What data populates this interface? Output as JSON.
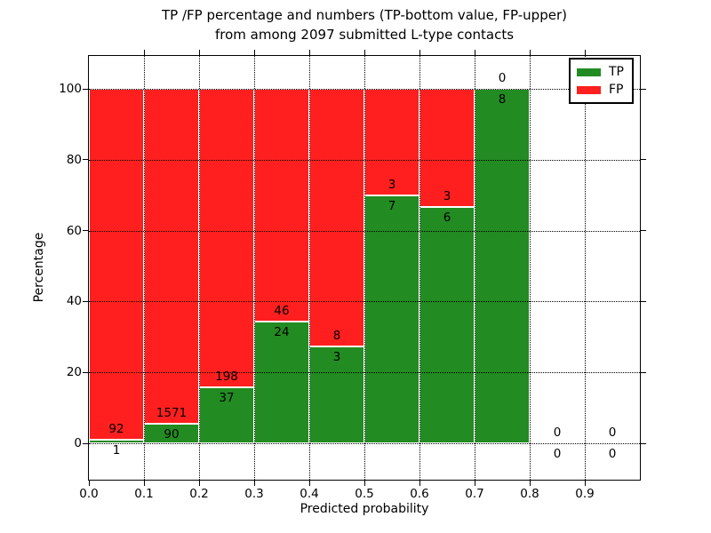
{
  "chart_data": {
    "type": "bar",
    "stacked": true,
    "normalized_to_percent": true,
    "title_lines": [
      "TP /FP percentage and numbers (TP-bottom value, FP-upper)",
      "from among 2097 submitted L-type contacts"
    ],
    "xlabel": "Predicted probability",
    "ylabel": "Percentage",
    "total_contacts": 2097,
    "bin_edges": [
      0.0,
      0.1,
      0.2,
      0.3,
      0.4,
      0.5,
      0.6,
      0.7,
      0.8,
      0.9,
      1.0
    ],
    "categories": [
      "0.0-0.1",
      "0.1-0.2",
      "0.2-0.3",
      "0.3-0.4",
      "0.4-0.5",
      "0.5-0.6",
      "0.6-0.7",
      "0.7-0.8",
      "0.8-0.9",
      "0.9-1.0"
    ],
    "series": [
      {
        "name": "TP",
        "color": "#228b22",
        "counts": [
          1,
          90,
          37,
          24,
          3,
          7,
          6,
          8,
          0,
          0
        ]
      },
      {
        "name": "FP",
        "color": "#ff1f1f",
        "counts": [
          92,
          1571,
          198,
          46,
          8,
          3,
          3,
          0,
          0,
          0
        ]
      }
    ],
    "tp_percent_per_bin": [
      1.08,
      5.42,
      15.74,
      34.29,
      27.27,
      70.0,
      66.67,
      100.0,
      0.0,
      0.0
    ],
    "xticks": [
      "0.0",
      "0.1",
      "0.2",
      "0.3",
      "0.4",
      "0.5",
      "0.6",
      "0.7",
      "0.8",
      "0.9"
    ],
    "yticks": [
      0,
      20,
      40,
      60,
      80,
      100
    ],
    "xlim": [
      0.0,
      1.0
    ],
    "ylim": [
      -10.3,
      109.3
    ],
    "grid": true,
    "grid_style": "dotted",
    "bar_edge_color": "#ffffff",
    "legend": {
      "position": "upper right",
      "entries": [
        {
          "label": "TP",
          "color": "#228b22"
        },
        {
          "label": "FP",
          "color": "#ff1f1f"
        }
      ]
    }
  }
}
